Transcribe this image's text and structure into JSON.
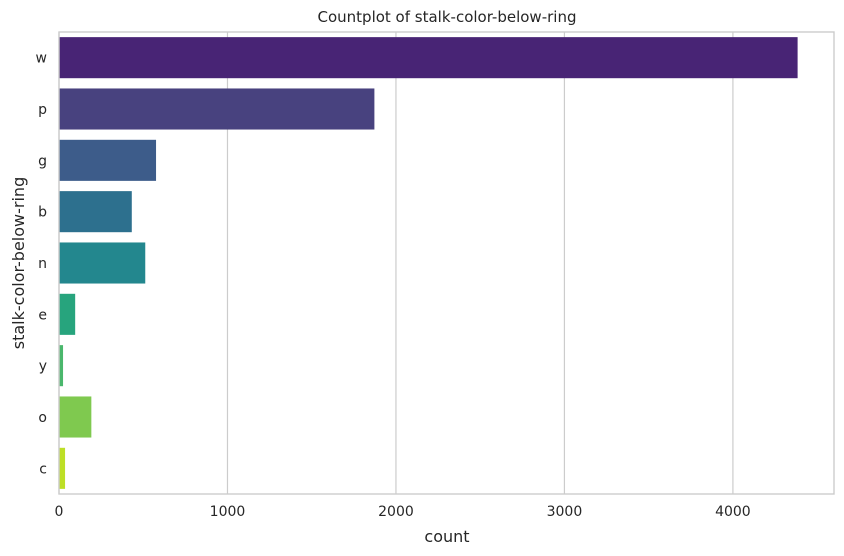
{
  "chart_data": {
    "type": "bar",
    "orientation": "horizontal",
    "title": "Countplot of stalk-color-below-ring",
    "xlabel": "count",
    "ylabel": "stalk-color-below-ring",
    "categories": [
      "w",
      "p",
      "g",
      "b",
      "n",
      "e",
      "y",
      "o",
      "c"
    ],
    "values": [
      4384,
      1872,
      576,
      432,
      512,
      96,
      24,
      192,
      36
    ],
    "colors": [
      "#482475",
      "#48427f",
      "#3d5c8a",
      "#2d708e",
      "#23878e",
      "#27a47d",
      "#4ab76c",
      "#7fc94f",
      "#bddf26"
    ],
    "xlim": [
      0,
      4600
    ],
    "xticks": [
      0,
      1000,
      2000,
      3000,
      4000
    ],
    "grid": true
  }
}
